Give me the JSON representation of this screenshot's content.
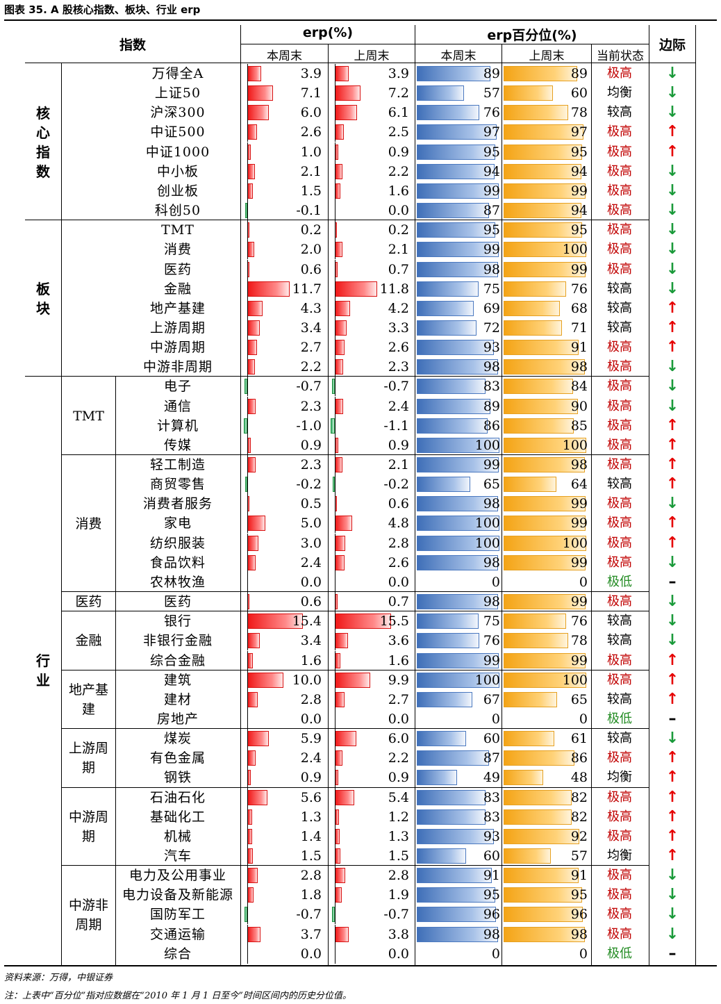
{
  "title": "图表 35. A 股核心指数、板块、行业 erp",
  "header": {
    "index_col": "指数",
    "erp_group": "erp(%)",
    "pct_group": "erp百分位(%)",
    "margin_col": "边际",
    "this_week": "本周末",
    "last_week": "上周末",
    "state": "当前状态"
  },
  "colors": {
    "erp_bar": "#f01818",
    "erp_negative_bar": "#3cb371",
    "pct_this_week_bar": "#3f6fb8",
    "pct_last_week_bar": "#f4a416",
    "state_high": "#c00000",
    "state_low": "#228b22",
    "arrow_up": "#e60000",
    "arrow_down": "#1a9a3a"
  },
  "icons": {
    "up": "↑",
    "down": "↓",
    "flat": "–"
  },
  "groups": [
    {
      "label": "核心指数",
      "start": 0,
      "end": 7
    },
    {
      "label": "板块",
      "start": 8,
      "end": 15
    },
    {
      "label": "行业",
      "start": 16,
      "end": 45
    }
  ],
  "subgroups": [
    {
      "label": "TMT",
      "start": 16,
      "end": 19
    },
    {
      "label": "消费",
      "start": 20,
      "end": 26
    },
    {
      "label": "医药",
      "start": 27,
      "end": 27
    },
    {
      "label": "金融",
      "start": 28,
      "end": 30
    },
    {
      "label": "地产基建",
      "start": 31,
      "end": 33
    },
    {
      "label": "上游周期",
      "start": 34,
      "end": 36
    },
    {
      "label": "中游周期",
      "start": 37,
      "end": 40
    },
    {
      "label": "中游非周期",
      "start": 41,
      "end": 45
    }
  ],
  "chart_data": {
    "type": "table",
    "columns": [
      "指数",
      "erp本周末",
      "erp上周末",
      "百分位本周末",
      "百分位上周末",
      "当前状态",
      "边际"
    ],
    "rows": [
      {
        "name": "万得全A",
        "erp_this": "3.9",
        "erp_last": "3.9",
        "pct_this": "89",
        "pct_last": "89",
        "state": "极高",
        "margin": "down"
      },
      {
        "name": "上证50",
        "erp_this": "7.1",
        "erp_last": "7.2",
        "pct_this": "57",
        "pct_last": "60",
        "state": "均衡",
        "margin": "down"
      },
      {
        "name": "沪深300",
        "erp_this": "6.0",
        "erp_last": "6.1",
        "pct_this": "76",
        "pct_last": "78",
        "state": "较高",
        "margin": "down"
      },
      {
        "name": "中证500",
        "erp_this": "2.6",
        "erp_last": "2.5",
        "pct_this": "97",
        "pct_last": "97",
        "state": "极高",
        "margin": "up"
      },
      {
        "name": "中证1000",
        "erp_this": "1.0",
        "erp_last": "0.9",
        "pct_this": "95",
        "pct_last": "95",
        "state": "极高",
        "margin": "up"
      },
      {
        "name": "中小板",
        "erp_this": "2.1",
        "erp_last": "2.2",
        "pct_this": "94",
        "pct_last": "94",
        "state": "极高",
        "margin": "down"
      },
      {
        "name": "创业板",
        "erp_this": "1.5",
        "erp_last": "1.6",
        "pct_this": "99",
        "pct_last": "99",
        "state": "极高",
        "margin": "down"
      },
      {
        "name": "科创50",
        "erp_this": "-0.1",
        "erp_last": "0.0",
        "pct_this": "87",
        "pct_last": "94",
        "state": "极高",
        "margin": "down"
      },
      {
        "name": "TMT",
        "erp_this": "0.2",
        "erp_last": "0.2",
        "pct_this": "95",
        "pct_last": "95",
        "state": "极高",
        "margin": "down"
      },
      {
        "name": "消费",
        "erp_this": "2.0",
        "erp_last": "2.1",
        "pct_this": "99",
        "pct_last": "100",
        "state": "极高",
        "margin": "down"
      },
      {
        "name": "医药",
        "erp_this": "0.6",
        "erp_last": "0.7",
        "pct_this": "98",
        "pct_last": "99",
        "state": "极高",
        "margin": "down"
      },
      {
        "name": "金融",
        "erp_this": "11.7",
        "erp_last": "11.8",
        "pct_this": "75",
        "pct_last": "76",
        "state": "较高",
        "margin": "down"
      },
      {
        "name": "地产基建",
        "erp_this": "4.3",
        "erp_last": "4.2",
        "pct_this": "69",
        "pct_last": "68",
        "state": "较高",
        "margin": "up"
      },
      {
        "name": "上游周期",
        "erp_this": "3.4",
        "erp_last": "3.3",
        "pct_this": "72",
        "pct_last": "71",
        "state": "较高",
        "margin": "up"
      },
      {
        "name": "中游周期",
        "erp_this": "2.7",
        "erp_last": "2.6",
        "pct_this": "93",
        "pct_last": "91",
        "state": "极高",
        "margin": "up"
      },
      {
        "name": "中游非周期",
        "erp_this": "2.2",
        "erp_last": "2.3",
        "pct_this": "98",
        "pct_last": "98",
        "state": "极高",
        "margin": "down"
      },
      {
        "name": "电子",
        "erp_this": "-0.7",
        "erp_last": "-0.7",
        "pct_this": "83",
        "pct_last": "84",
        "state": "极高",
        "margin": "down"
      },
      {
        "name": "通信",
        "erp_this": "2.3",
        "erp_last": "2.4",
        "pct_this": "89",
        "pct_last": "90",
        "state": "极高",
        "margin": "down"
      },
      {
        "name": "计算机",
        "erp_this": "-1.0",
        "erp_last": "-1.1",
        "pct_this": "86",
        "pct_last": "85",
        "state": "极高",
        "margin": "up"
      },
      {
        "name": "传媒",
        "erp_this": "0.9",
        "erp_last": "0.9",
        "pct_this": "100",
        "pct_last": "100",
        "state": "极高",
        "margin": "up"
      },
      {
        "name": "轻工制造",
        "erp_this": "2.3",
        "erp_last": "2.1",
        "pct_this": "99",
        "pct_last": "98",
        "state": "极高",
        "margin": "up"
      },
      {
        "name": "商贸零售",
        "erp_this": "-0.2",
        "erp_last": "-0.2",
        "pct_this": "65",
        "pct_last": "64",
        "state": "较高",
        "margin": "up"
      },
      {
        "name": "消费者服务",
        "erp_this": "0.5",
        "erp_last": "0.6",
        "pct_this": "98",
        "pct_last": "99",
        "state": "极高",
        "margin": "down"
      },
      {
        "name": "家电",
        "erp_this": "5.0",
        "erp_last": "4.8",
        "pct_this": "100",
        "pct_last": "99",
        "state": "极高",
        "margin": "up"
      },
      {
        "name": "纺织服装",
        "erp_this": "3.0",
        "erp_last": "2.8",
        "pct_this": "100",
        "pct_last": "100",
        "state": "极高",
        "margin": "up"
      },
      {
        "name": "食品饮料",
        "erp_this": "2.4",
        "erp_last": "2.6",
        "pct_this": "98",
        "pct_last": "99",
        "state": "极高",
        "margin": "down"
      },
      {
        "name": "农林牧渔",
        "erp_this": "0.0",
        "erp_last": "0.0",
        "pct_this": "0",
        "pct_last": "0",
        "state": "极低",
        "margin": "flat"
      },
      {
        "name": "医药",
        "erp_this": "0.6",
        "erp_last": "0.7",
        "pct_this": "98",
        "pct_last": "99",
        "state": "极高",
        "margin": "down"
      },
      {
        "name": "银行",
        "erp_this": "15.4",
        "erp_last": "15.5",
        "pct_this": "75",
        "pct_last": "76",
        "state": "较高",
        "margin": "down"
      },
      {
        "name": "非银行金融",
        "erp_this": "3.4",
        "erp_last": "3.6",
        "pct_this": "76",
        "pct_last": "78",
        "state": "较高",
        "margin": "down"
      },
      {
        "name": "综合金融",
        "erp_this": "1.6",
        "erp_last": "1.6",
        "pct_this": "99",
        "pct_last": "99",
        "state": "极高",
        "margin": "up"
      },
      {
        "name": "建筑",
        "erp_this": "10.0",
        "erp_last": "9.9",
        "pct_this": "100",
        "pct_last": "100",
        "state": "极高",
        "margin": "up"
      },
      {
        "name": "建材",
        "erp_this": "2.8",
        "erp_last": "2.7",
        "pct_this": "67",
        "pct_last": "65",
        "state": "较高",
        "margin": "up"
      },
      {
        "name": "房地产",
        "erp_this": "0.0",
        "erp_last": "0.0",
        "pct_this": "0",
        "pct_last": "0",
        "state": "极低",
        "margin": "flat"
      },
      {
        "name": "煤炭",
        "erp_this": "5.9",
        "erp_last": "6.0",
        "pct_this": "60",
        "pct_last": "61",
        "state": "较高",
        "margin": "down"
      },
      {
        "name": "有色金属",
        "erp_this": "2.4",
        "erp_last": "2.2",
        "pct_this": "87",
        "pct_last": "86",
        "state": "极高",
        "margin": "up"
      },
      {
        "name": "钢铁",
        "erp_this": "0.9",
        "erp_last": "0.9",
        "pct_this": "49",
        "pct_last": "48",
        "state": "均衡",
        "margin": "up"
      },
      {
        "name": "石油石化",
        "erp_this": "5.6",
        "erp_last": "5.4",
        "pct_this": "83",
        "pct_last": "82",
        "state": "极高",
        "margin": "up"
      },
      {
        "name": "基础化工",
        "erp_this": "1.3",
        "erp_last": "1.2",
        "pct_this": "83",
        "pct_last": "82",
        "state": "极高",
        "margin": "up"
      },
      {
        "name": "机械",
        "erp_this": "1.4",
        "erp_last": "1.3",
        "pct_this": "93",
        "pct_last": "92",
        "state": "极高",
        "margin": "up"
      },
      {
        "name": "汽车",
        "erp_this": "1.5",
        "erp_last": "1.5",
        "pct_this": "60",
        "pct_last": "57",
        "state": "均衡",
        "margin": "up"
      },
      {
        "name": "电力及公用事业",
        "erp_this": "2.8",
        "erp_last": "2.8",
        "pct_this": "91",
        "pct_last": "91",
        "state": "极高",
        "margin": "down"
      },
      {
        "name": "电力设备及新能源",
        "erp_this": "1.8",
        "erp_last": "1.9",
        "pct_this": "95",
        "pct_last": "95",
        "state": "极高",
        "margin": "down"
      },
      {
        "name": "国防军工",
        "erp_this": "-0.7",
        "erp_last": "-0.7",
        "pct_this": "96",
        "pct_last": "96",
        "state": "极高",
        "margin": "down"
      },
      {
        "name": "交通运输",
        "erp_this": "3.7",
        "erp_last": "3.8",
        "pct_this": "98",
        "pct_last": "98",
        "state": "极高",
        "margin": "down"
      },
      {
        "name": "综合",
        "erp_this": "0.0",
        "erp_last": "0.0",
        "pct_this": "0",
        "pct_last": "0",
        "state": "极低",
        "margin": "flat"
      }
    ]
  },
  "footer": {
    "source": "资料来源：万得，中银证券",
    "note": "注：上表中“百分位”指对应数据在“2010 年 1 月 1 日至今”时间区间内的历史分位值。"
  }
}
